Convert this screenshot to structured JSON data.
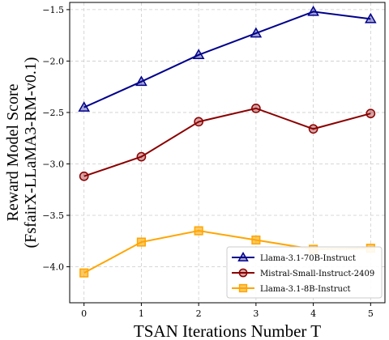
{
  "chart_data": {
    "type": "line",
    "xlabel": "TSAN Iterations Number T",
    "ylabel_line1": "Reward Model Score",
    "ylabel_line2": "(FsfairX-LLaMA3-RM-v0.1)",
    "x": [
      0,
      1,
      2,
      3,
      4,
      5
    ],
    "xlim": [
      -0.25,
      5.25
    ],
    "ylim": [
      -4.35,
      -1.43
    ],
    "xticks": [
      "0",
      "1",
      "2",
      "3",
      "4",
      "5"
    ],
    "yticks": [
      -1.5,
      -2.0,
      -2.5,
      -3.0,
      -3.5,
      -4.0
    ],
    "ytick_labels": [
      "−1.5",
      "−2.0",
      "−2.5",
      "−3.0",
      "−3.5",
      "−4.0"
    ],
    "grid": true,
    "legend_position": "lower-right",
    "series": [
      {
        "name": "Llama-3.1-70B-Instruct",
        "values": [
          -2.45,
          -2.2,
          -1.94,
          -1.73,
          -1.52,
          -1.59
        ],
        "color": "#00008b",
        "marker": "triangle"
      },
      {
        "name": "Mistral-Small-Instruct-2409",
        "values": [
          -3.12,
          -2.93,
          -2.59,
          -2.46,
          -2.66,
          -2.51
        ],
        "color": "#8b0000",
        "marker": "circle"
      },
      {
        "name": "Llama-3.1-8B-Instruct",
        "values": [
          -4.06,
          -3.76,
          -3.65,
          -3.74,
          -3.83,
          -3.82
        ],
        "color": "#ffa500",
        "marker": "square"
      }
    ]
  }
}
